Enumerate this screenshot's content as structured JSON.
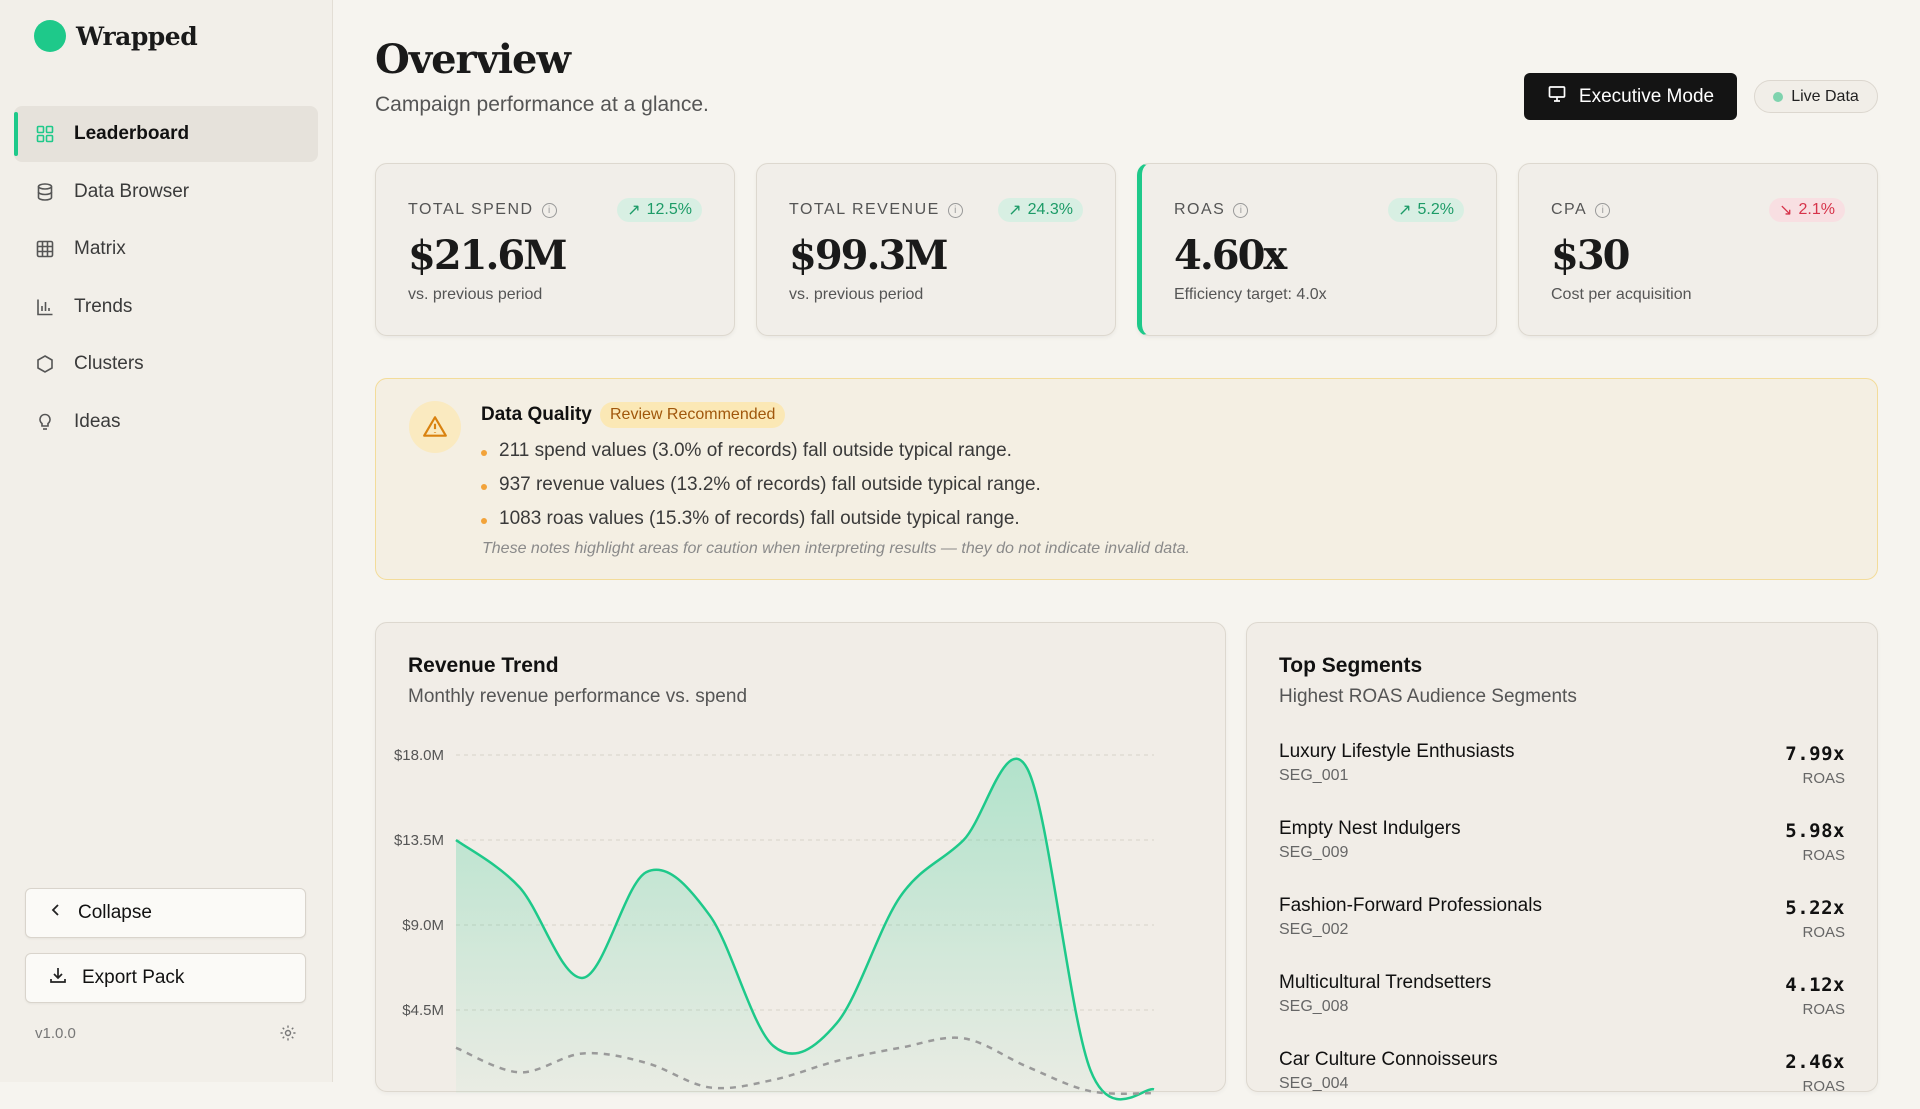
{
  "brand": {
    "name": "Wrapped",
    "accent": "#1ec98a"
  },
  "nav": [
    {
      "label": "Leaderboard",
      "icon": "grid-icon",
      "active": true
    },
    {
      "label": "Data Browser",
      "icon": "database-icon"
    },
    {
      "label": "Matrix",
      "icon": "table-icon"
    },
    {
      "label": "Trends",
      "icon": "bar-chart-icon"
    },
    {
      "label": "Clusters",
      "icon": "hexagon-icon"
    },
    {
      "label": "Ideas",
      "icon": "lightbulb-icon"
    }
  ],
  "sidebar_footer": {
    "collapse_label": "Collapse",
    "export_label": "Export Pack",
    "version": "v1.0.0"
  },
  "header": {
    "title": "Overview",
    "subtitle": "Campaign performance at a glance.",
    "exec_label": "Executive Mode",
    "live_label": "Live Data"
  },
  "kpis": [
    {
      "label": "TOTAL SPEND",
      "change": "12.5%",
      "direction": "up",
      "value": "$21.6M",
      "note": "vs. previous period"
    },
    {
      "label": "TOTAL REVENUE",
      "change": "24.3%",
      "direction": "up",
      "value": "$99.3M",
      "note": "vs. previous period"
    },
    {
      "label": "ROAS",
      "change": "5.2%",
      "direction": "up",
      "value": "4.60x",
      "note": "Efficiency target: 4.0x"
    },
    {
      "label": "CPA",
      "change": "2.1%",
      "direction": "down",
      "value": "$30",
      "note": "Cost per acquisition"
    }
  ],
  "data_quality": {
    "title": "Data Quality",
    "tag": "Review Recommended",
    "items": [
      "211 spend values (3.0% of records) fall outside typical range.",
      "937 revenue values (13.2% of records) fall outside typical range.",
      "1083 roas values (15.3% of records) fall outside typical range."
    ],
    "footnote": "These notes highlight areas for caution when interpreting results — they do not indicate invalid data."
  },
  "revenue_card": {
    "title": "Revenue Trend",
    "subtitle": "Monthly revenue performance vs. spend"
  },
  "chart_data": {
    "type": "area",
    "title": "Revenue Trend",
    "y_ticks": [
      "$18.0M",
      "$13.5M",
      "$9.0M",
      "$4.5M"
    ],
    "ylim": [
      0,
      18
    ],
    "grid": true,
    "x": [
      0,
      1,
      2,
      3,
      4,
      5,
      6,
      7,
      8,
      9,
      10,
      11
    ],
    "series": [
      {
        "type": "area",
        "color": "#1ec98a",
        "values": [
          13.5,
          11.0,
          6.2,
          11.8,
          9.5,
          2.6,
          3.8,
          10.5,
          13.5,
          17.3,
          1.3,
          0.3
        ]
      },
      {
        "type": "dashed-line",
        "color": "#9a9a9a",
        "values": [
          2.5,
          1.2,
          2.2,
          1.7,
          0.4,
          0.8,
          1.8,
          2.5,
          3.0,
          1.5,
          0.2,
          0.1
        ]
      }
    ]
  },
  "segments_card": {
    "title": "Top Segments",
    "subtitle": "Highest ROAS Audience Segments",
    "unit": "ROAS",
    "items": [
      {
        "name": "Luxury Lifestyle Enthusiasts",
        "id": "SEG_001",
        "value": "7.99x"
      },
      {
        "name": "Empty Nest Indulgers",
        "id": "SEG_009",
        "value": "5.98x"
      },
      {
        "name": "Fashion-Forward Professionals",
        "id": "SEG_002",
        "value": "5.22x"
      },
      {
        "name": "Multicultural Trendsetters",
        "id": "SEG_008",
        "value": "4.12x"
      },
      {
        "name": "Car Culture Connoisseurs",
        "id": "SEG_004",
        "value": "2.46x"
      }
    ]
  }
}
